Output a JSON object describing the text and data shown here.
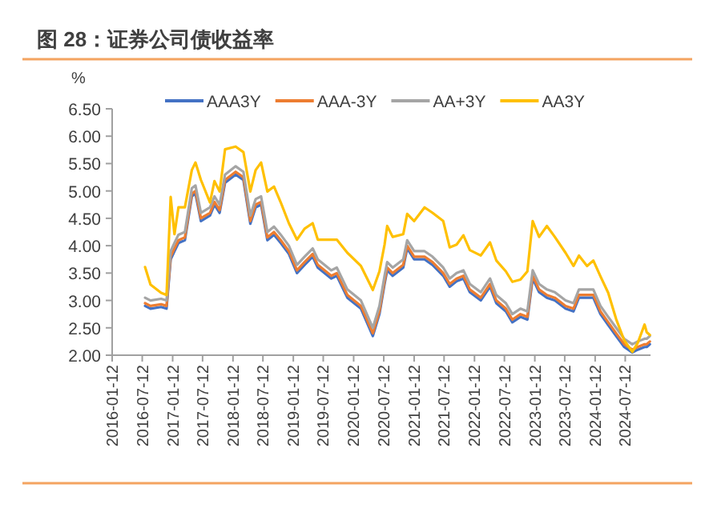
{
  "chart_data": {
    "type": "line",
    "title": "图 28：证券公司债收益率",
    "ylabel": "%",
    "legend": "top",
    "grid": false,
    "marker": "none",
    "line_style": "solid",
    "x": [
      "2016-07-29",
      "2016-08-31",
      "2016-11-03",
      "2016-12-06",
      "2016-12-31",
      "2017-01-23",
      "2017-02-16",
      "2017-03-27",
      "2017-05-08",
      "2017-05-30",
      "2017-07-02",
      "2017-08-26",
      "2017-09-22",
      "2017-10-23",
      "2017-11-25",
      "2018-01-28",
      "2018-03-16",
      "2018-04-27",
      "2018-05-29",
      "2018-07-01",
      "2018-08-08",
      "2018-09-17",
      "2018-10-28",
      "2018-12-16",
      "2019-02-03",
      "2019-03-21",
      "2019-05-09",
      "2019-06-09",
      "2019-08-30",
      "2019-10-02",
      "2019-12-05",
      "2020-02-25",
      "2020-05-07",
      "2020-06-16",
      "2020-07-17",
      "2020-08-02",
      "2020-09-04",
      "2020-11-07",
      "2020-12-01",
      "2021-01-12",
      "2021-03-16",
      "2021-05-03",
      "2021-07-07",
      "2021-08-15",
      "2021-09-26",
      "2021-11-06",
      "2021-12-15",
      "2022-02-19",
      "2022-04-16",
      "2022-05-24",
      "2022-07-21",
      "2022-08-29",
      "2022-10-17",
      "2022-11-28",
      "2022-12-30",
      "2023-02-07",
      "2023-03-26",
      "2023-05-13",
      "2023-07-17",
      "2023-09-03",
      "2023-10-06",
      "2023-11-24",
      "2024-01-01",
      "2024-02-13",
      "2024-03-31",
      "2024-05-18",
      "2024-07-06",
      "2024-08-24",
      "2024-09-25",
      "2024-11-06",
      "2024-11-19",
      "2024-12-08"
    ],
    "series": [
      {
        "name": "AAA3Y",
        "color": "#4472c4",
        "values": [
          2.9,
          2.85,
          2.88,
          2.85,
          3.75,
          3.9,
          4.05,
          4.1,
          4.9,
          4.95,
          4.45,
          4.55,
          4.75,
          4.6,
          5.15,
          5.3,
          5.2,
          4.4,
          4.7,
          4.75,
          4.1,
          4.2,
          4.05,
          3.85,
          3.5,
          3.65,
          3.8,
          3.6,
          3.4,
          3.45,
          3.05,
          2.85,
          2.35,
          2.75,
          3.3,
          3.55,
          3.45,
          3.6,
          3.95,
          3.75,
          3.75,
          3.65,
          3.45,
          3.25,
          3.35,
          3.4,
          3.15,
          3.0,
          3.25,
          2.95,
          2.8,
          2.6,
          2.7,
          2.65,
          3.4,
          3.15,
          3.05,
          3.0,
          2.85,
          2.8,
          3.05,
          3.05,
          3.05,
          2.75,
          2.55,
          2.35,
          2.15,
          2.05,
          2.1,
          2.15,
          2.15,
          2.2
        ]
      },
      {
        "name": "AAA-3Y",
        "color": "#ed7d31",
        "values": [
          2.95,
          2.9,
          2.93,
          2.9,
          3.8,
          3.95,
          4.1,
          4.15,
          4.95,
          5.0,
          4.5,
          4.6,
          4.8,
          4.65,
          5.2,
          5.35,
          5.25,
          4.45,
          4.75,
          4.8,
          4.15,
          4.25,
          4.1,
          3.9,
          3.55,
          3.7,
          3.85,
          3.65,
          3.45,
          3.5,
          3.1,
          2.9,
          2.4,
          2.8,
          3.35,
          3.6,
          3.5,
          3.65,
          4.0,
          3.8,
          3.8,
          3.7,
          3.5,
          3.3,
          3.4,
          3.45,
          3.2,
          3.05,
          3.3,
          3.0,
          2.85,
          2.65,
          2.75,
          2.7,
          3.45,
          3.2,
          3.1,
          3.05,
          2.9,
          2.85,
          3.1,
          3.1,
          3.1,
          2.8,
          2.6,
          2.4,
          2.2,
          2.1,
          2.15,
          2.2,
          2.2,
          2.25
        ]
      },
      {
        "name": "AA+3Y",
        "color": "#a5a5a5",
        "values": [
          3.05,
          3.0,
          3.03,
          3.0,
          3.9,
          4.05,
          4.2,
          4.25,
          5.05,
          5.1,
          4.6,
          4.7,
          4.9,
          4.75,
          5.3,
          5.45,
          5.35,
          4.55,
          4.85,
          4.9,
          4.25,
          4.35,
          4.2,
          4.0,
          3.65,
          3.8,
          3.95,
          3.75,
          3.55,
          3.6,
          3.2,
          3.0,
          2.5,
          2.9,
          3.45,
          3.7,
          3.6,
          3.75,
          4.1,
          3.9,
          3.9,
          3.8,
          3.6,
          3.4,
          3.5,
          3.55,
          3.3,
          3.15,
          3.4,
          3.1,
          2.95,
          2.75,
          2.85,
          2.8,
          3.55,
          3.3,
          3.2,
          3.15,
          3.0,
          2.95,
          3.2,
          3.2,
          3.2,
          2.9,
          2.7,
          2.5,
          2.3,
          2.2,
          2.25,
          2.3,
          2.3,
          2.35
        ]
      },
      {
        "name": "AA3Y",
        "color": "#ffc000",
        "values": [
          3.61,
          3.29,
          3.14,
          3.1,
          4.89,
          4.21,
          4.7,
          4.7,
          5.38,
          5.52,
          5.2,
          4.79,
          5.18,
          4.99,
          5.76,
          5.81,
          5.71,
          4.99,
          5.38,
          5.52,
          4.99,
          5.08,
          4.79,
          4.41,
          4.11,
          4.31,
          4.41,
          4.11,
          4.11,
          4.11,
          3.87,
          3.63,
          3.19,
          3.53,
          4.02,
          4.36,
          4.16,
          4.21,
          4.58,
          4.45,
          4.7,
          4.6,
          4.45,
          3.97,
          4.02,
          4.19,
          3.92,
          3.82,
          4.06,
          3.73,
          3.53,
          3.34,
          3.38,
          3.53,
          4.45,
          4.16,
          4.36,
          4.16,
          3.87,
          3.63,
          3.82,
          3.63,
          3.73,
          3.44,
          3.14,
          2.66,
          2.27,
          2.06,
          2.22,
          2.56,
          2.42,
          2.37
        ]
      }
    ],
    "xlim": [
      "2016-01-12",
      "2024-12-12"
    ],
    "xticks": [
      "2016-01-12",
      "2016-07-12",
      "2017-01-12",
      "2017-07-12",
      "2018-01-12",
      "2018-07-12",
      "2019-01-12",
      "2019-07-12",
      "2020-01-12",
      "2020-07-12",
      "2021-01-12",
      "2021-07-12",
      "2022-01-12",
      "2022-07-12",
      "2023-01-12",
      "2023-07-12",
      "2024-01-12",
      "2024-07-12"
    ],
    "ylim": [
      2,
      6.5
    ],
    "yticks": [
      {
        "value": 2,
        "label": "2.00"
      },
      {
        "value": 2.5,
        "label": "2.50"
      },
      {
        "value": 3,
        "label": "3.00"
      },
      {
        "value": 3.5,
        "label": "3.50"
      },
      {
        "value": 4,
        "label": "4.00"
      },
      {
        "value": 4.5,
        "label": "4.50"
      },
      {
        "value": 5,
        "label": "5.00"
      },
      {
        "value": 5.5,
        "label": "5.50"
      },
      {
        "value": 6,
        "label": "6.00"
      },
      {
        "value": 6.5,
        "label": "6.50"
      }
    ]
  }
}
